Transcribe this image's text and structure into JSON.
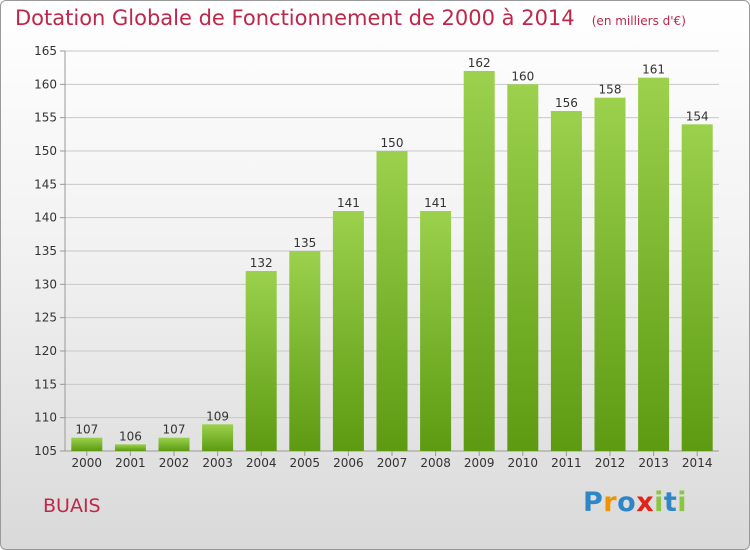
{
  "title": "Dotation Globale de Fonctionnement de 2000 à 2014",
  "subtitle": "(en milliers d'€)",
  "city": "BUAIS",
  "logo": {
    "text": "Proxiti",
    "letters": [
      {
        "ch": "P",
        "color": "#2f86c6"
      },
      {
        "ch": "r",
        "color": "#f39200"
      },
      {
        "ch": "o",
        "color": "#2f86c6"
      },
      {
        "ch": "x",
        "color": "#e2231a"
      },
      {
        "ch": "i",
        "color": "#8cc63f"
      },
      {
        "ch": "t",
        "color": "#2f86c6"
      },
      {
        "ch": "i",
        "color": "#8cc63f"
      }
    ]
  },
  "colors": {
    "accent": "#c0264a",
    "bar_top": "#9bd14d",
    "bar_bottom": "#5d9a12",
    "grid": "#c8c8c8",
    "text": "#333333"
  },
  "chart_data": {
    "type": "bar",
    "categories": [
      "2000",
      "2001",
      "2002",
      "2003",
      "2004",
      "2005",
      "2006",
      "2007",
      "2008",
      "2009",
      "2010",
      "2011",
      "2012",
      "2013",
      "2014"
    ],
    "values": [
      107,
      106,
      107,
      109,
      132,
      135,
      141,
      150,
      141,
      162,
      160,
      156,
      158,
      161,
      154
    ],
    "ylim": [
      105,
      165
    ],
    "yticks": [
      105,
      110,
      115,
      120,
      125,
      130,
      135,
      140,
      145,
      150,
      155,
      160,
      165
    ],
    "grid": true,
    "legend": "none"
  }
}
